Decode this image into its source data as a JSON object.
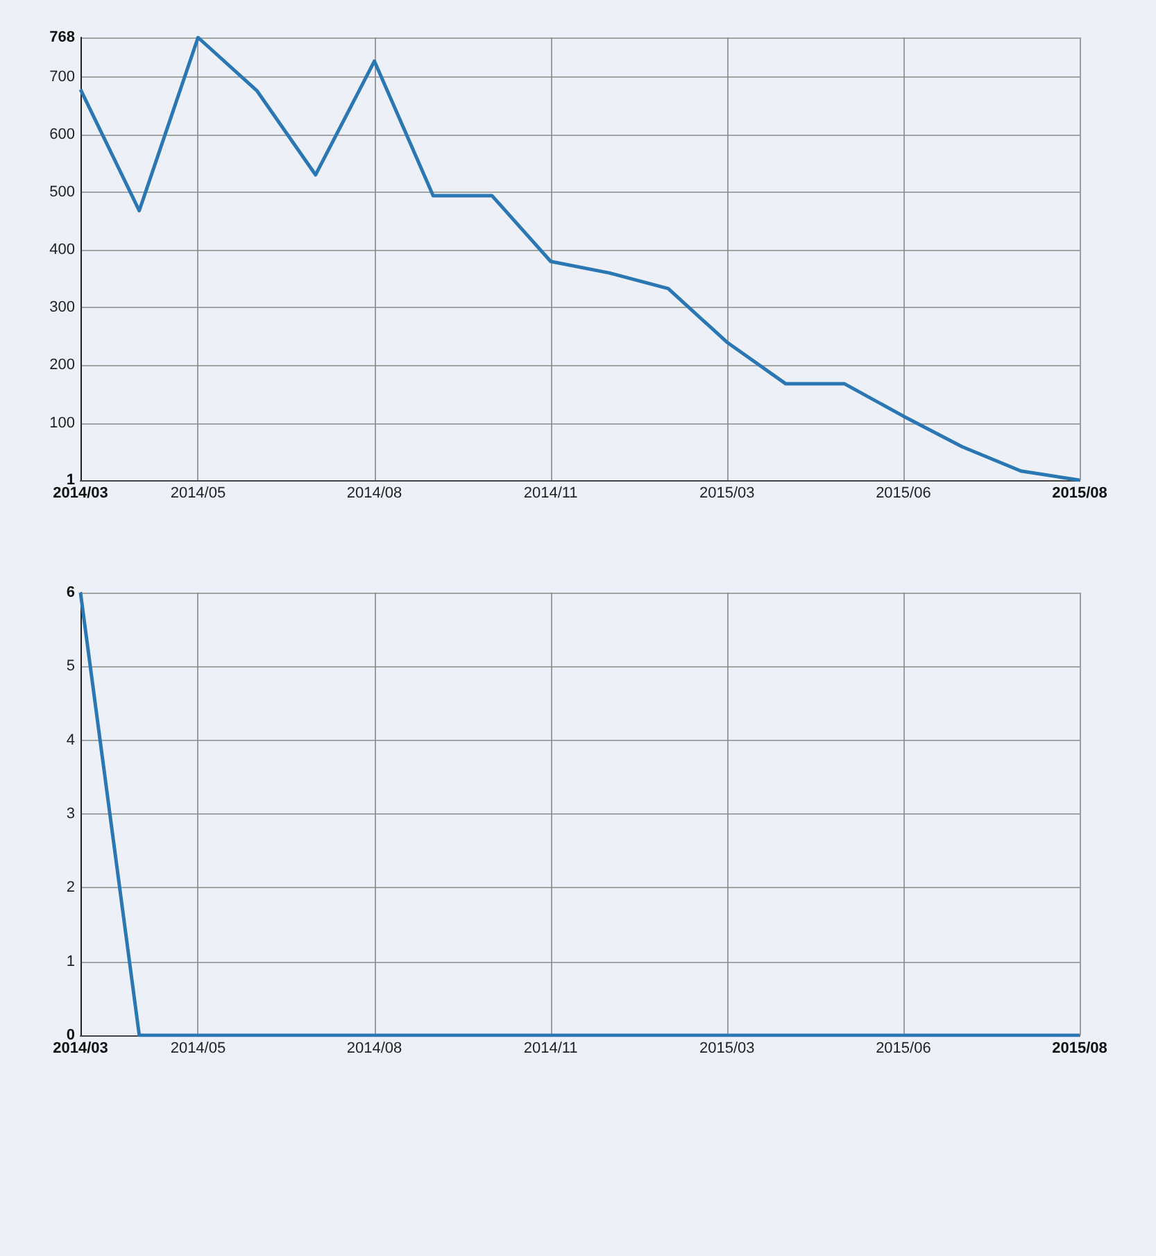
{
  "chart_data": [
    {
      "type": "line",
      "categories": [
        "2014/03",
        null,
        "2014/05",
        null,
        null,
        "2014/08",
        null,
        null,
        "2014/11",
        null,
        null,
        "2015/03",
        null,
        null,
        "2015/06",
        null,
        null,
        "2015/08"
      ],
      "series": [
        {
          "color": "#2a77b4",
          "values": [
            678,
            468,
            768,
            676,
            530,
            727,
            494,
            494,
            380,
            360,
            333,
            240,
            168,
            168,
            112,
            59,
            17,
            1
          ]
        }
      ],
      "ylim": [
        1,
        768
      ],
      "yticks": [
        1,
        100,
        200,
        300,
        400,
        500,
        600,
        700,
        768
      ],
      "grid": true,
      "marker": "none",
      "line_style": "solid"
    },
    {
      "type": "line",
      "categories": [
        "2014/03",
        null,
        "2014/05",
        null,
        null,
        "2014/08",
        null,
        null,
        "2014/11",
        null,
        null,
        "2015/03",
        null,
        null,
        "2015/06",
        null,
        null,
        "2015/08"
      ],
      "series": [
        {
          "color": "#2a77b4",
          "values": [
            6,
            0,
            0,
            0,
            0,
            0,
            0,
            0,
            0,
            0,
            0,
            0,
            0,
            0,
            0,
            0,
            0,
            0
          ]
        }
      ],
      "ylim": [
        0,
        6
      ],
      "yticks": [
        0,
        1,
        2,
        3,
        4,
        5,
        6
      ],
      "grid": true,
      "marker": "none",
      "line_style": "solid"
    }
  ]
}
